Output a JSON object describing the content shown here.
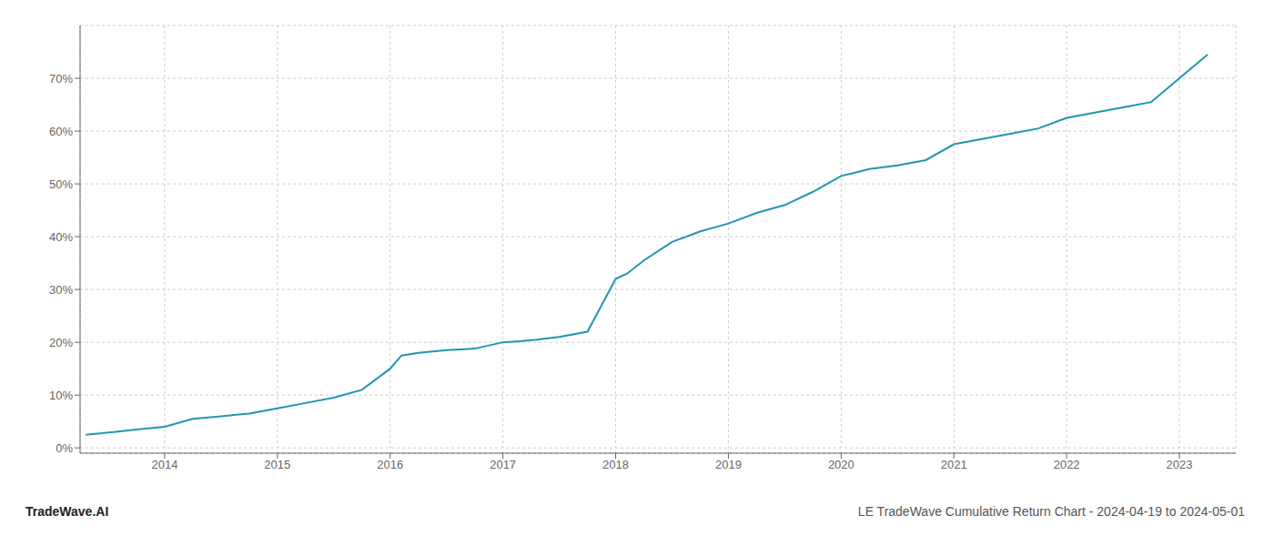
{
  "chart_data": {
    "type": "line",
    "title": "LE TradeWave Cumulative Return Chart - 2024-04-19 to 2024-05-01",
    "annotations": [
      "TradeWave.AI"
    ],
    "x": [
      2013.3,
      2013.55,
      2013.75,
      2014.0,
      2014.25,
      2014.5,
      2014.75,
      2015.0,
      2015.25,
      2015.5,
      2015.75,
      2016.0,
      2016.1,
      2016.25,
      2016.5,
      2016.75,
      2017.0,
      2017.15,
      2017.3,
      2017.5,
      2017.75,
      2018.0,
      2018.1,
      2018.25,
      2018.5,
      2018.75,
      2019.0,
      2019.25,
      2019.5,
      2019.75,
      2020.0,
      2020.1,
      2020.25,
      2020.5,
      2020.75,
      2021.0,
      2021.25,
      2021.5,
      2021.75,
      2022.0,
      2022.25,
      2022.5,
      2022.75,
      2023.0,
      2023.25
    ],
    "values": [
      2.5,
      3.0,
      3.5,
      4.0,
      5.5,
      6.0,
      6.5,
      7.5,
      8.5,
      9.5,
      11.0,
      15.0,
      17.5,
      18.0,
      18.5,
      18.8,
      20.0,
      20.2,
      20.5,
      21.0,
      22.0,
      32.0,
      33.0,
      35.5,
      39.0,
      41.0,
      42.5,
      44.5,
      46.0,
      48.5,
      51.5,
      52.0,
      52.8,
      53.5,
      54.5,
      57.5,
      58.5,
      59.5,
      60.5,
      62.5,
      63.5,
      64.5,
      65.5,
      70.0,
      74.5
    ],
    "color": "#2196b0",
    "xlim": [
      2013.25,
      2023.5
    ],
    "xticks": [
      2014,
      2015,
      2016,
      2017,
      2018,
      2019,
      2020,
      2021,
      2022,
      2023
    ],
    "ylim": [
      -1,
      80
    ],
    "yticks": [
      {
        "value": 0,
        "label": "0%"
      },
      {
        "value": 10,
        "label": "10%"
      },
      {
        "value": 20,
        "label": "20%"
      },
      {
        "value": 30,
        "label": "30%"
      },
      {
        "value": 40,
        "label": "40%"
      },
      {
        "value": 50,
        "label": "50%"
      },
      {
        "value": 60,
        "label": "60%"
      },
      {
        "value": 70,
        "label": "70%"
      }
    ],
    "grid": true
  }
}
